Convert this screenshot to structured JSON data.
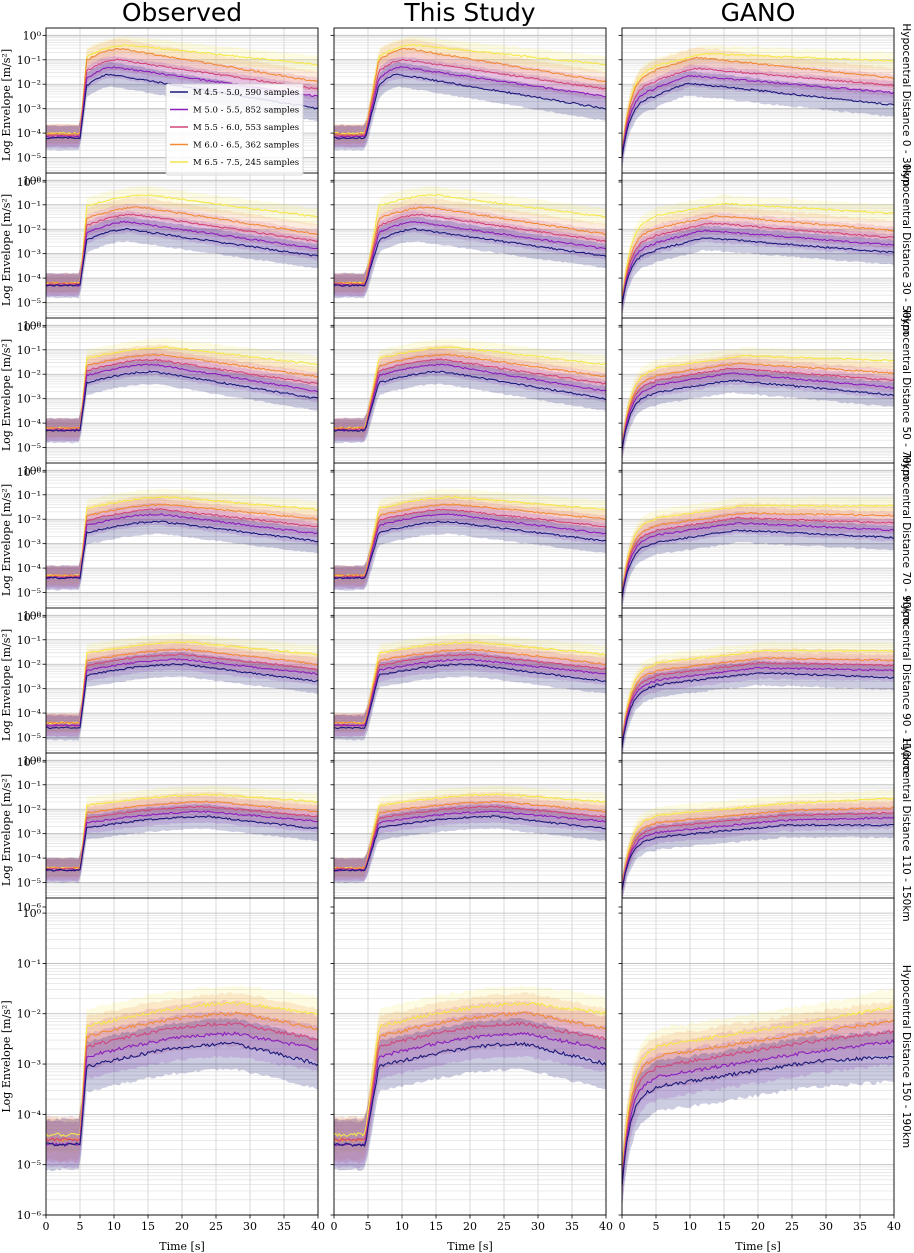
{
  "figure": {
    "column_titles": [
      "Observed",
      "This Study",
      "GANO"
    ],
    "row_labels": [
      "Hypocentral Distance 0 - 30km",
      "Hypocentral Distance 30 - 50km",
      "Hypocentral Distance 50 - 70km",
      "Hypocentral Distance 70 - 90km",
      "Hypocentral Distance 90 - 110km",
      "Hypocentral Distance 110 - 150km",
      "Hypocentral Distance 150 - 190km"
    ],
    "ylabel": "Log Envelope [m/s²]",
    "xlabel": "Time [s]",
    "legend": [
      {
        "label": "M 4.5 - 5.0, 590 samples",
        "color": "#1b1a7a"
      },
      {
        "label": "M 5.0 - 5.5, 852 samples",
        "color": "#8e1ebd"
      },
      {
        "label": "M 5.5 - 6.0, 553 samples",
        "color": "#d2477a"
      },
      {
        "label": "M 6.0 - 6.5, 362 samples",
        "color": "#f28b37"
      },
      {
        "label": "M 6.5 - 7.5, 245 samples",
        "color": "#f5e84b"
      }
    ]
  },
  "chart_data": {
    "type": "line",
    "layout": "7 rows (hypocentral distance bins) x 3 columns (Observed, This Study, GANO)",
    "x_ticks": [
      0,
      5,
      10,
      15,
      20,
      25,
      30,
      35,
      40
    ],
    "x_tick_labels": [
      "0",
      "5",
      "10",
      "15",
      "20",
      "25",
      "30",
      "35",
      "40"
    ],
    "xlim": [
      0,
      40
    ],
    "y_scale": "log",
    "y_tick_exponents": [
      -6,
      -5,
      -4,
      -3,
      -2,
      -1,
      0
    ],
    "y_tick_labels": [
      "10⁻⁶",
      "10⁻⁵",
      "10⁻⁴",
      "10⁻³",
      "10⁻²",
      "10⁻¹",
      "10⁰"
    ],
    "ylim_log10": [
      -6,
      0.3
    ],
    "grid": true,
    "legend_location": "first panel, center-left",
    "series_names": [
      "M 4.5 - 5.0, 590 samples",
      "M 5.0 - 5.5, 852 samples",
      "M 5.5 - 6.0, 553 samples",
      "M 6.0 - 6.5, 362 samples",
      "M 6.5 - 7.5, 245 samples"
    ],
    "series_colors": [
      "#1b1a7a",
      "#8e1ebd",
      "#d2477a",
      "#f28b37",
      "#f5e84b"
    ],
    "shade_halfwidth_log10": [
      0.5,
      0.45,
      0.45,
      0.4,
      0.35
    ],
    "series_log10_by_row": [
      {
        "noise": [
          -4.2,
          -4.15,
          -4.1,
          -4.05,
          -4.0
        ],
        "peak": [
          -1.6,
          -1.3,
          -1.0,
          -0.55,
          -0.4
        ],
        "peak_t": [
          9.5,
          10.0,
          10.5,
          11.0,
          12.0
        ],
        "end": [
          -3.0,
          -2.5,
          -2.2,
          -1.9,
          -1.2
        ]
      },
      {
        "noise": [
          -4.3,
          -4.3,
          -4.25,
          -4.2,
          -4.2
        ],
        "peak": [
          -2.0,
          -1.7,
          -1.4,
          -1.1,
          -0.6
        ],
        "peak_t": [
          12.0,
          12.0,
          13.0,
          14.0,
          15.0
        ],
        "end": [
          -3.1,
          -2.8,
          -2.5,
          -2.2,
          -1.5
        ]
      },
      {
        "noise": [
          -4.3,
          -4.3,
          -4.25,
          -4.2,
          -4.2
        ],
        "peak": [
          -1.9,
          -1.6,
          -1.4,
          -1.2,
          -0.9
        ],
        "peak_t": [
          16.0,
          16.0,
          16.0,
          17.0,
          18.0
        ],
        "end": [
          -3.0,
          -2.7,
          -2.4,
          -2.1,
          -1.6
        ]
      },
      {
        "noise": [
          -4.4,
          -4.4,
          -4.35,
          -4.3,
          -4.3
        ],
        "peak": [
          -2.1,
          -1.8,
          -1.6,
          -1.4,
          -1.1
        ],
        "peak_t": [
          17.0,
          17.0,
          17.0,
          18.0,
          18.0
        ],
        "end": [
          -2.9,
          -2.6,
          -2.3,
          -2.0,
          -1.6
        ]
      },
      {
        "noise": [
          -4.6,
          -4.5,
          -4.5,
          -4.4,
          -4.4
        ],
        "peak": [
          -2.0,
          -1.8,
          -1.6,
          -1.4,
          -1.1
        ],
        "peak_t": [
          20.0,
          20.0,
          20.0,
          21.0,
          21.0
        ],
        "end": [
          -2.7,
          -2.4,
          -2.2,
          -2.0,
          -1.6
        ]
      },
      {
        "noise": [
          -4.5,
          -4.5,
          -4.45,
          -4.4,
          -4.4
        ],
        "peak": [
          -2.3,
          -2.1,
          -1.9,
          -1.7,
          -1.4
        ],
        "peak_t": [
          24.0,
          24.0,
          24.0,
          25.0,
          25.0
        ],
        "end": [
          -2.8,
          -2.5,
          -2.3,
          -2.1,
          -1.7
        ]
      },
      {
        "noise": [
          -4.6,
          -4.6,
          -4.5,
          -4.5,
          -4.4
        ],
        "peak": [
          -2.6,
          -2.4,
          -2.2,
          -2.0,
          -1.8
        ],
        "peak_t": [
          28.0,
          28.0,
          28.0,
          29.0,
          29.0
        ],
        "end": [
          -3.0,
          -2.7,
          -2.5,
          -2.3,
          -2.0
        ]
      }
    ],
    "column_model": [
      "observed (step onset at ~5 s)",
      "this study (smoothed onset ~4-6 s)",
      "GANO (gradual rise from 0 s, lower peaks)"
    ]
  }
}
